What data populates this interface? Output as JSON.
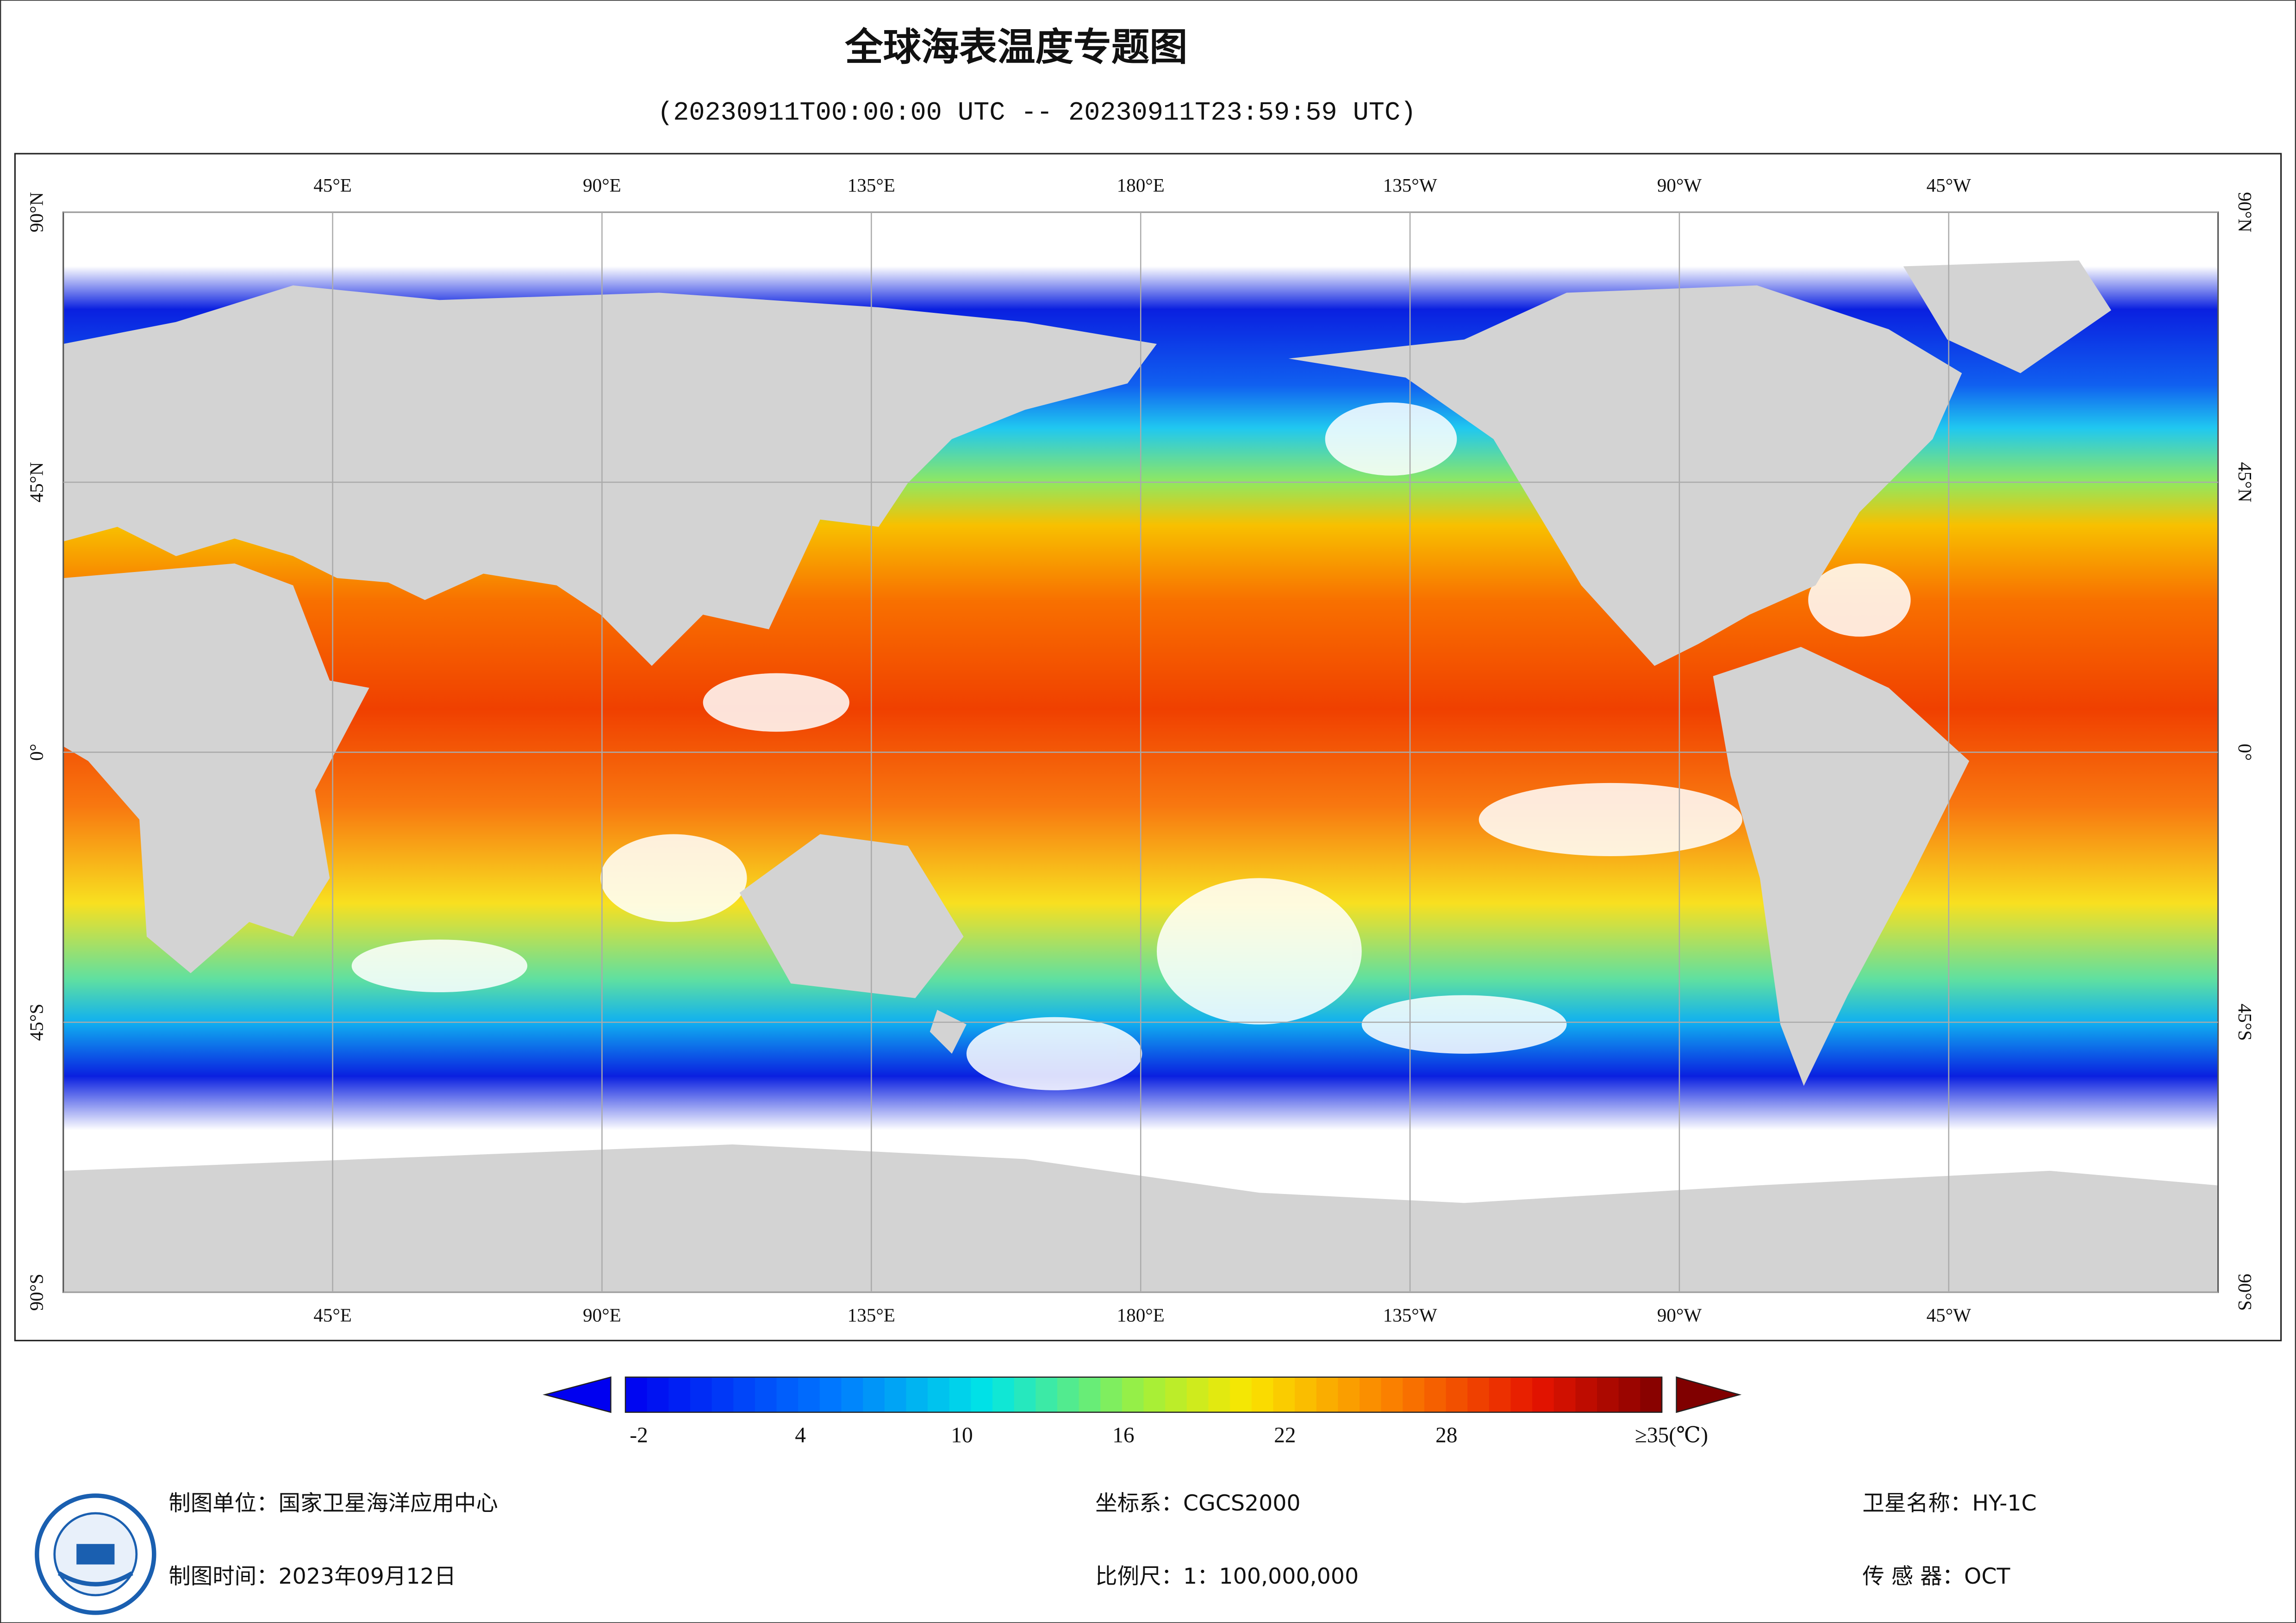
{
  "title": "全球海表温度专题图",
  "subtitle": "(20230911T00:00:00 UTC -- 20230911T23:59:59 UTC)",
  "map": {
    "lonlim": [
      0,
      360
    ],
    "latlim": [
      -90,
      90
    ],
    "lonticks": [
      {
        "value": 45,
        "label": "45°E"
      },
      {
        "value": 90,
        "label": "90°E"
      },
      {
        "value": 135,
        "label": "135°E"
      },
      {
        "value": 180,
        "label": "180°E"
      },
      {
        "value": 225,
        "label": "135°W"
      },
      {
        "value": 270,
        "label": "90°W"
      },
      {
        "value": 315,
        "label": "45°W"
      }
    ],
    "latticks": [
      {
        "value": 90,
        "label": "90°N"
      },
      {
        "value": 45,
        "label": "45°N"
      },
      {
        "value": 0,
        "label": "0°"
      },
      {
        "value": -45,
        "label": "45°S"
      },
      {
        "value": -90,
        "label": "90°S"
      }
    ]
  },
  "colorbar": {
    "lim": [
      -2.5,
      36
    ],
    "ticks": [
      -2,
      4,
      10,
      16,
      22,
      28,
      {
        "value": 35,
        "label": "≥35(℃)"
      }
    ]
  },
  "footer": {
    "unit": "制图单位：国家卫星海洋应用中心",
    "date": "制图时间：2023年09月12日",
    "crs": "坐标系：CGCS2000",
    "scale": "比例尺：1：100,000,000",
    "satellite": "卫星名称：HY-1C",
    "sensor": "传 感 器：OCT"
  }
}
